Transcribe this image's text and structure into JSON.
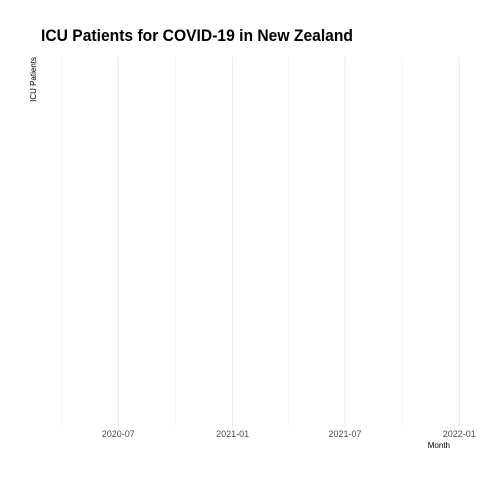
{
  "chart_data": {
    "type": "line",
    "title": "ICU Patients for COVID-19 in New Zealand",
    "xlabel": "Month",
    "ylabel": "ICU Patients",
    "x_ticks": [
      "2020-07",
      "2021-01",
      "2021-07",
      "2022-01"
    ],
    "x_minor_ticks": [
      "2020-04",
      "2020-10",
      "2021-04",
      "2021-10"
    ],
    "xlim": [
      "2020-03-05",
      "2022-01-15"
    ],
    "series": [],
    "grid": true,
    "legend": "none"
  }
}
